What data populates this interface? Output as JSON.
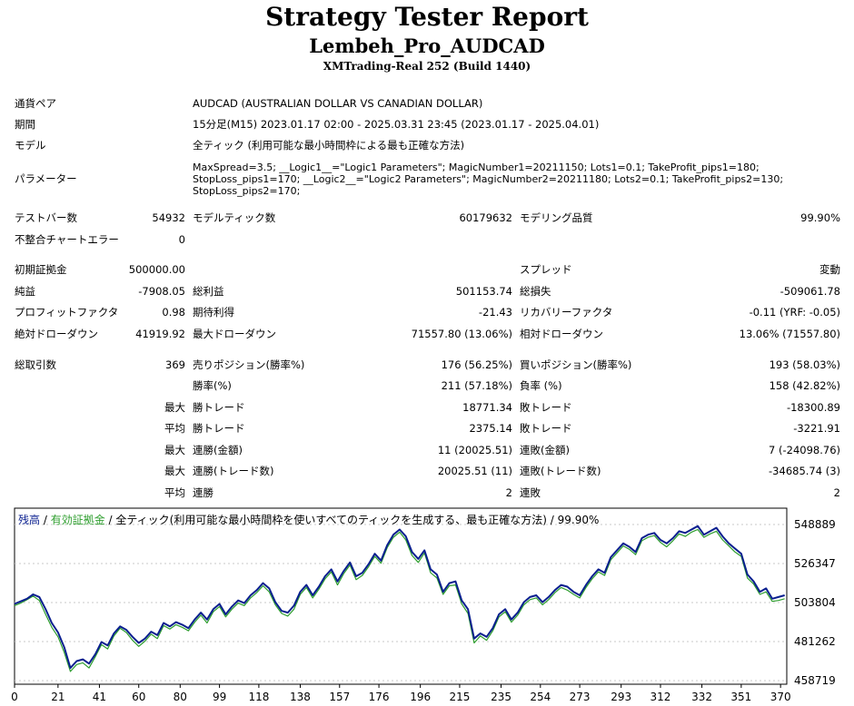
{
  "report": {
    "title": "Strategy Tester Report",
    "ea_name": "Lembeh_Pro_AUDCAD",
    "server": "XMTrading-Real 252 (Build 1440)"
  },
  "info": {
    "pair_label": "通貨ペア",
    "pair_value": "AUDCAD (AUSTRALIAN DOLLAR VS CANADIAN DOLLAR)",
    "period_label": "期間",
    "period_value": "15分足(M15) 2023.01.17 02:00 - 2025.03.31 23:45 (2023.01.17 - 2025.04.01)",
    "model_label": "モデル",
    "model_value": "全ティック (利用可能な最小時間枠による最も正確な方法)",
    "params_label": "パラメーター",
    "params_value": "MaxSpread=3.5; __Logic1__=\"Logic1 Parameters\"; MagicNumber1=20211150; Lots1=0.1; TakeProfit_pips1=180; StopLoss_pips1=170; __Logic2__=\"Logic2 Parameters\"; MagicNumber2=20211180; Lots2=0.1; TakeProfit_pips2=130; StopLoss_pips2=170;"
  },
  "stats": {
    "bars_label": "テストバー数",
    "bars": "54932",
    "ticks_label": "モデルティック数",
    "ticks": "60179632",
    "quality_label": "モデリング品質",
    "quality": "99.90%",
    "mismatch_label": "不整合チャートエラー",
    "mismatch": "0",
    "deposit_label": "初期証拠金",
    "deposit": "500000.00",
    "spread_label": "スプレッド",
    "spread": "変動",
    "net_label": "純益",
    "net": "-7908.05",
    "gross_profit_label": "総利益",
    "gross_profit": "501153.74",
    "gross_loss_label": "総損失",
    "gross_loss": "-509061.78",
    "pf_label": "プロフィットファクタ",
    "pf": "0.98",
    "expected_label": "期待利得",
    "expected": "-21.43",
    "recovery_label": "リカバリーファクタ",
    "recovery": "-0.11 (YRF: -0.05)",
    "abs_dd_label": "絶対ドローダウン",
    "abs_dd": "41919.92",
    "max_dd_label": "最大ドローダウン",
    "max_dd": "71557.80 (13.06%)",
    "rel_dd_label": "相対ドローダウン",
    "rel_dd": "13.06% (71557.80)",
    "total_trades_label": "総取引数",
    "total_trades": "369",
    "short_label": "売りポジション(勝率%)",
    "short": "176 (56.25%)",
    "long_label": "買いポジション(勝率%)",
    "long": "193 (58.03%)",
    "win_pct_label": "勝率(%)",
    "win_pct": "211 (57.18%)",
    "loss_pct_label": "負率 (%)",
    "loss_pct": "158 (42.82%)",
    "max_label": "最大",
    "avg_label": "平均",
    "win_trade_label": "勝トレード",
    "loss_trade_label": "敗トレード",
    "max_win": "18771.34",
    "max_loss": "-18300.89",
    "avg_win": "2375.14",
    "avg_loss": "-3221.91",
    "cons_win_amt_label": "連勝(金額)",
    "cons_win_amt": "11 (20025.51)",
    "cons_loss_amt_label": "連敗(金額)",
    "cons_loss_amt": "7 (-24098.76)",
    "cons_win_cnt_label": "連勝(トレード数)",
    "cons_win_cnt": "20025.51 (11)",
    "cons_loss_cnt_label": "連敗(トレード数)",
    "cons_loss_cnt": "-34685.74 (3)",
    "avg_cons_win_label": "連勝",
    "avg_cons_win": "2",
    "avg_cons_loss_label": "連敗",
    "avg_cons_loss": "2"
  },
  "chart_data": {
    "type": "line",
    "legend": {
      "balance": "残高",
      "sep1": " / ",
      "equity": "有効証拠金",
      "sep2": " / ",
      "desc": "全ティック(利用可能な最小時間枠を使いすべてのティックを生成する、最も正確な方法) / 99.90%"
    },
    "colors": {
      "balance": "#0a1f8f",
      "equity": "#2e9e2e"
    },
    "ylim": [
      458719,
      548889
    ],
    "yticks": [
      "548889",
      "526347",
      "503804",
      "481262",
      "458719"
    ],
    "xlim": [
      0,
      373
    ],
    "xticks": [
      "0",
      "21",
      "41",
      "60",
      "80",
      "99",
      "118",
      "138",
      "157",
      "176",
      "196",
      "215",
      "235",
      "254",
      "273",
      "293",
      "312",
      "332",
      "351",
      "370"
    ],
    "series": [
      {
        "key": "balance",
        "x": [
          0,
          3,
          6,
          9,
          12,
          15,
          18,
          21,
          24,
          27,
          30,
          33,
          36,
          39,
          42,
          45,
          48,
          51,
          54,
          57,
          60,
          63,
          66,
          69,
          72,
          75,
          78,
          81,
          84,
          87,
          90,
          93,
          96,
          99,
          102,
          105,
          108,
          111,
          114,
          117,
          120,
          123,
          126,
          129,
          132,
          135,
          138,
          141,
          144,
          147,
          150,
          153,
          156,
          159,
          162,
          165,
          168,
          171,
          174,
          177,
          180,
          183,
          186,
          189,
          192,
          195,
          198,
          201,
          204,
          207,
          210,
          213,
          216,
          219,
          222,
          225,
          228,
          231,
          234,
          237,
          240,
          243,
          246,
          249,
          252,
          255,
          258,
          261,
          264,
          267,
          270,
          273,
          276,
          279,
          282,
          285,
          288,
          291,
          294,
          297,
          300,
          303,
          306,
          309,
          312,
          315,
          318,
          321,
          324,
          327,
          330,
          333,
          336,
          339,
          342,
          345,
          348,
          351,
          354,
          357,
          360,
          363,
          366,
          369,
          372
        ],
        "y": [
          503000,
          504500,
          506000,
          508500,
          507000,
          500000,
          492000,
          486500,
          478000,
          466000,
          470000,
          471000,
          468500,
          474000,
          481000,
          479000,
          486000,
          490000,
          488000,
          484000,
          480500,
          483000,
          487000,
          485000,
          492000,
          490000,
          492500,
          491000,
          489000,
          494000,
          498000,
          494000,
          500000,
          503000,
          497000,
          501500,
          505000,
          503500,
          508000,
          511000,
          515000,
          512000,
          504000,
          499000,
          498000,
          502000,
          510000,
          514000,
          508000,
          513000,
          519000,
          523000,
          516000,
          522000,
          527000,
          519000,
          521000,
          526000,
          532000,
          528000,
          537000,
          543000,
          546000,
          542000,
          533000,
          529000,
          534000,
          523000,
          520000,
          510000,
          515000,
          516000,
          505000,
          500000,
          483000,
          486000,
          484000,
          489000,
          497000,
          500000,
          494000,
          498000,
          504000,
          507000,
          508000,
          504000,
          507000,
          511000,
          514000,
          513000,
          510000,
          508000,
          514000,
          519000,
          523000,
          521000,
          530000,
          534000,
          538000,
          536000,
          533000,
          541000,
          543000,
          544000,
          540000,
          538000,
          541000,
          545000,
          544000,
          546000,
          548000,
          543000,
          545000,
          547000,
          542000,
          538000,
          535000,
          532000,
          520000,
          516000,
          510000,
          512000,
          506000,
          507000,
          508000
        ]
      },
      {
        "key": "equity",
        "x": [
          0,
          3,
          6,
          9,
          12,
          15,
          18,
          21,
          24,
          27,
          30,
          33,
          36,
          39,
          42,
          45,
          48,
          51,
          54,
          57,
          60,
          63,
          66,
          69,
          72,
          75,
          78,
          81,
          84,
          87,
          90,
          93,
          96,
          99,
          102,
          105,
          108,
          111,
          114,
          117,
          120,
          123,
          126,
          129,
          132,
          135,
          138,
          141,
          144,
          147,
          150,
          153,
          156,
          159,
          162,
          165,
          168,
          171,
          174,
          177,
          180,
          183,
          186,
          189,
          192,
          195,
          198,
          201,
          204,
          207,
          210,
          213,
          216,
          219,
          222,
          225,
          228,
          231,
          234,
          237,
          240,
          243,
          246,
          249,
          252,
          255,
          258,
          261,
          264,
          267,
          270,
          273,
          276,
          279,
          282,
          285,
          288,
          291,
          294,
          297,
          300,
          303,
          306,
          309,
          312,
          315,
          318,
          321,
          324,
          327,
          330,
          333,
          336,
          339,
          342,
          345,
          348,
          351,
          354,
          357,
          360,
          363,
          366,
          369,
          372
        ],
        "y": [
          502000,
          503500,
          505500,
          507500,
          505000,
          497000,
          489500,
          484000,
          475000,
          464000,
          468000,
          469000,
          466000,
          472500,
          479500,
          477000,
          484500,
          489000,
          486500,
          482000,
          478500,
          481500,
          485500,
          483000,
          490500,
          488500,
          491000,
          489500,
          487500,
          492500,
          496500,
          492000,
          498500,
          501500,
          495500,
          500000,
          503500,
          502000,
          506500,
          509500,
          513500,
          510000,
          502500,
          497500,
          496000,
          500000,
          508500,
          512500,
          506500,
          511500,
          517500,
          521500,
          514000,
          520500,
          525500,
          517000,
          519500,
          524500,
          530500,
          526500,
          535500,
          541500,
          544500,
          540000,
          531000,
          527000,
          532500,
          521000,
          518000,
          508500,
          513500,
          514000,
          503000,
          497500,
          480500,
          484500,
          482000,
          487500,
          495500,
          498500,
          492500,
          496500,
          502500,
          505500,
          506500,
          502500,
          505500,
          509500,
          512500,
          511000,
          508500,
          506500,
          512500,
          517500,
          521500,
          519500,
          528500,
          532500,
          536500,
          534500,
          531500,
          539500,
          541500,
          542500,
          538500,
          536000,
          539500,
          543500,
          542000,
          544500,
          546000,
          541500,
          543500,
          545000,
          540000,
          536500,
          533000,
          530500,
          518000,
          514500,
          508500,
          510000,
          504500,
          505000,
          506000
        ]
      }
    ]
  }
}
